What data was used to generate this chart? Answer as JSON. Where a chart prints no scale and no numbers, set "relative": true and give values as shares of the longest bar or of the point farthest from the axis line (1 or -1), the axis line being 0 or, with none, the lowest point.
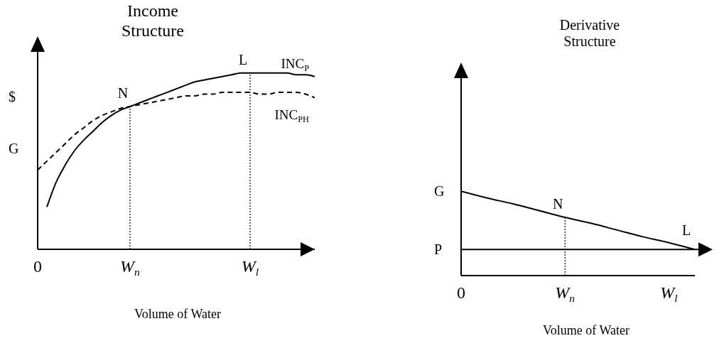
{
  "chart_data": [
    {
      "type": "line",
      "title": "Income Structure",
      "xlabel": "Volume of Water",
      "ylabel": "$",
      "relative": true,
      "categories": [
        "0",
        null,
        null,
        null,
        null,
        null,
        null,
        null,
        null,
        null,
        "W$_{n}$",
        null,
        null,
        null,
        null,
        null,
        null,
        null,
        null,
        null,
        null,
        null,
        null,
        "W$_{l}$",
        null,
        null,
        null,
        null,
        null,
        null,
        null
      ],
      "series": [
        {
          "name": "INC$_{P}$",
          "color": "#000000",
          "line_style": "solid",
          "values": [
            null,
            0.24,
            0.38,
            0.48,
            0.56,
            0.62,
            0.67,
            0.72,
            0.76,
            0.79,
            0.81,
            0.83,
            0.85,
            0.87,
            0.89,
            0.91,
            0.93,
            0.95,
            0.96,
            0.97,
            0.98,
            0.99,
            1.0,
            1.0,
            1.0,
            1.0,
            1.0,
            1.0,
            0.99,
            0.99,
            0.98
          ]
        },
        {
          "name": "INC$_{PH}$",
          "color": "#000000",
          "line_style": "dashed",
          "values": [
            0.45,
            0.5,
            0.55,
            0.6,
            0.65,
            0.69,
            0.73,
            0.76,
            0.78,
            0.8,
            0.81,
            0.82,
            0.83,
            0.84,
            0.85,
            0.86,
            0.87,
            0.87,
            0.88,
            0.88,
            0.89,
            0.89,
            0.89,
            0.89,
            0.88,
            0.88,
            0.89,
            0.89,
            0.89,
            0.88,
            0.86
          ]
        }
      ],
      "ref_lines": [
        {
          "axis": "x",
          "value": "W$_{n}$",
          "line_style": "dotted",
          "color": "#000000"
        },
        {
          "axis": "x",
          "value": "W$_{l}$",
          "line_style": "dotted",
          "color": "#000000"
        }
      ],
      "annotations": [
        {
          "text": "N",
          "x": "W$_{n}$",
          "y": 0.81
        },
        {
          "text": "L",
          "x": "W$_{l}$",
          "y": 1.0
        },
        "G"
      ]
    },
    {
      "type": "line",
      "title": "Derivative Structure",
      "xlabel": "Volume of Water",
      "relative": true,
      "categories": [
        "0",
        null,
        null,
        null,
        "W$_{n}$",
        null,
        null,
        null,
        "W$_{l}$",
        null
      ],
      "series": [
        {
          "color": "#000000",
          "line_style": "solid",
          "values": [
            1,
            0.92,
            0.85,
            0.77,
            0.69,
            0.62,
            0.54,
            0.46,
            0.39,
            0.31
          ]
        }
      ],
      "ref_lines": [
        {
          "axis": "x",
          "value": "W$_{n}$",
          "line_style": "dotted",
          "color": "#000000"
        },
        {
          "axis": "y",
          "value": 0.31,
          "label": "P",
          "line_style": "solid",
          "color": "#000000"
        }
      ],
      "annotations": [
        {
          "text": "G",
          "x": "0",
          "y": 1
        },
        {
          "text": "N",
          "x": "W$_{n}$",
          "y": 0.69
        },
        {
          "text": "L",
          "y": 0.31
        }
      ]
    }
  ]
}
